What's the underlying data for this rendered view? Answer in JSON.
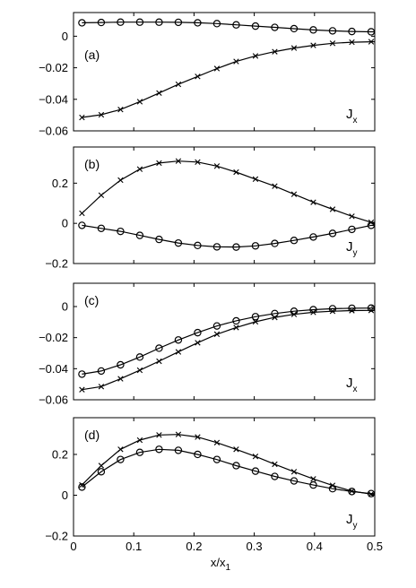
{
  "chart_data": [
    {
      "type": "line",
      "panel_label": "(a)",
      "component": "J",
      "component_sub": "x",
      "ylim": [
        -0.06,
        0.015
      ],
      "yticks": [
        -0.06,
        -0.04,
        -0.02,
        0
      ],
      "ytick_labels": [
        "−0.06",
        "−0.04",
        "−0.02",
        "0"
      ],
      "xlim": [
        0,
        0.5
      ],
      "series": [
        {
          "marker": "circle",
          "x": [
            0.014,
            0.046,
            0.078,
            0.11,
            0.142,
            0.174,
            0.206,
            0.238,
            0.27,
            0.302,
            0.334,
            0.366,
            0.398,
            0.43,
            0.462,
            0.494
          ],
          "y": [
            0.0085,
            0.0087,
            0.0089,
            0.0089,
            0.0089,
            0.0088,
            0.0085,
            0.008,
            0.0072,
            0.0064,
            0.0056,
            0.0048,
            0.004,
            0.0034,
            0.003,
            0.0028
          ]
        },
        {
          "marker": "x",
          "x": [
            0.014,
            0.046,
            0.078,
            0.11,
            0.142,
            0.174,
            0.206,
            0.238,
            0.27,
            0.302,
            0.334,
            0.366,
            0.398,
            0.43,
            0.462,
            0.494
          ],
          "y": [
            -0.0515,
            -0.0498,
            -0.0465,
            -0.0415,
            -0.036,
            -0.0305,
            -0.0255,
            -0.0205,
            -0.016,
            -0.0125,
            -0.0098,
            -0.0075,
            -0.0058,
            -0.0045,
            -0.0038,
            -0.0035
          ]
        }
      ]
    },
    {
      "type": "line",
      "panel_label": "(b)",
      "component": "J",
      "component_sub": "y",
      "ylim": [
        -0.2,
        0.38
      ],
      "yticks": [
        -0.2,
        0,
        0.2
      ],
      "ytick_labels": [
        "−0.2",
        "0",
        "0.2"
      ],
      "xlim": [
        0,
        0.5
      ],
      "series": [
        {
          "marker": "x",
          "x": [
            0.014,
            0.046,
            0.078,
            0.11,
            0.142,
            0.174,
            0.206,
            0.238,
            0.27,
            0.302,
            0.334,
            0.366,
            0.398,
            0.43,
            0.462,
            0.494
          ],
          "y": [
            0.05,
            0.14,
            0.215,
            0.27,
            0.3,
            0.31,
            0.305,
            0.285,
            0.255,
            0.22,
            0.185,
            0.145,
            0.105,
            0.07,
            0.035,
            0.005
          ]
        },
        {
          "marker": "circle",
          "x": [
            0.014,
            0.046,
            0.078,
            0.11,
            0.142,
            0.174,
            0.206,
            0.238,
            0.27,
            0.302,
            0.334,
            0.366,
            0.398,
            0.43,
            0.462,
            0.494
          ],
          "y": [
            -0.01,
            -0.025,
            -0.04,
            -0.06,
            -0.08,
            -0.098,
            -0.11,
            -0.117,
            -0.118,
            -0.112,
            -0.1,
            -0.085,
            -0.068,
            -0.05,
            -0.03,
            -0.01
          ]
        }
      ]
    },
    {
      "type": "line",
      "panel_label": "(c)",
      "component": "J",
      "component_sub": "x",
      "ylim": [
        -0.06,
        0.015
      ],
      "yticks": [
        -0.06,
        -0.04,
        -0.02,
        0
      ],
      "ytick_labels": [
        "−0.06",
        "−0.04",
        "−0.02",
        "0"
      ],
      "xlim": [
        0,
        0.5
      ],
      "series": [
        {
          "marker": "circle",
          "x": [
            0.014,
            0.046,
            0.078,
            0.11,
            0.142,
            0.174,
            0.206,
            0.238,
            0.27,
            0.302,
            0.334,
            0.366,
            0.398,
            0.43,
            0.462,
            0.494
          ],
          "y": [
            -0.0435,
            -0.0415,
            -0.0375,
            -0.0325,
            -0.0268,
            -0.0215,
            -0.0168,
            -0.0125,
            -0.0092,
            -0.0065,
            -0.0045,
            -0.003,
            -0.002,
            -0.0014,
            -0.0011,
            -0.001
          ]
        },
        {
          "marker": "x",
          "x": [
            0.014,
            0.046,
            0.078,
            0.11,
            0.142,
            0.174,
            0.206,
            0.238,
            0.27,
            0.302,
            0.334,
            0.366,
            0.398,
            0.43,
            0.462,
            0.494
          ],
          "y": [
            -0.0535,
            -0.0515,
            -0.0465,
            -0.041,
            -0.0352,
            -0.0292,
            -0.0233,
            -0.0178,
            -0.0135,
            -0.0098,
            -0.007,
            -0.005,
            -0.0037,
            -0.003,
            -0.0026,
            -0.0025
          ]
        }
      ]
    },
    {
      "type": "line",
      "panel_label": "(d)",
      "component": "J",
      "component_sub": "y",
      "ylim": [
        -0.2,
        0.38
      ],
      "yticks": [
        -0.2,
        0,
        0.2
      ],
      "ytick_labels": [
        "−0.2",
        "0",
        "0.2"
      ],
      "xlim": [
        0,
        0.5
      ],
      "xticks": [
        0,
        0.1,
        0.2,
        0.3,
        0.4,
        0.5
      ],
      "xtick_labels": [
        "0",
        "0.1",
        "0.2",
        "0.3",
        "0.4",
        "0.5"
      ],
      "xlabel": "x/x",
      "xlabel_sub": "1",
      "series": [
        {
          "marker": "x",
          "x": [
            0.014,
            0.046,
            0.078,
            0.11,
            0.142,
            0.174,
            0.206,
            0.238,
            0.27,
            0.302,
            0.334,
            0.366,
            0.398,
            0.43,
            0.462,
            0.494
          ],
          "y": [
            0.05,
            0.145,
            0.225,
            0.27,
            0.295,
            0.298,
            0.285,
            0.258,
            0.225,
            0.19,
            0.152,
            0.115,
            0.08,
            0.048,
            0.02,
            0.005
          ]
        },
        {
          "marker": "circle",
          "x": [
            0.014,
            0.046,
            0.078,
            0.11,
            0.142,
            0.174,
            0.206,
            0.238,
            0.27,
            0.302,
            0.334,
            0.366,
            0.398,
            0.43,
            0.462,
            0.494
          ],
          "y": [
            0.04,
            0.115,
            0.175,
            0.21,
            0.225,
            0.22,
            0.2,
            0.175,
            0.145,
            0.118,
            0.092,
            0.07,
            0.05,
            0.032,
            0.018,
            0.008
          ]
        }
      ]
    }
  ]
}
